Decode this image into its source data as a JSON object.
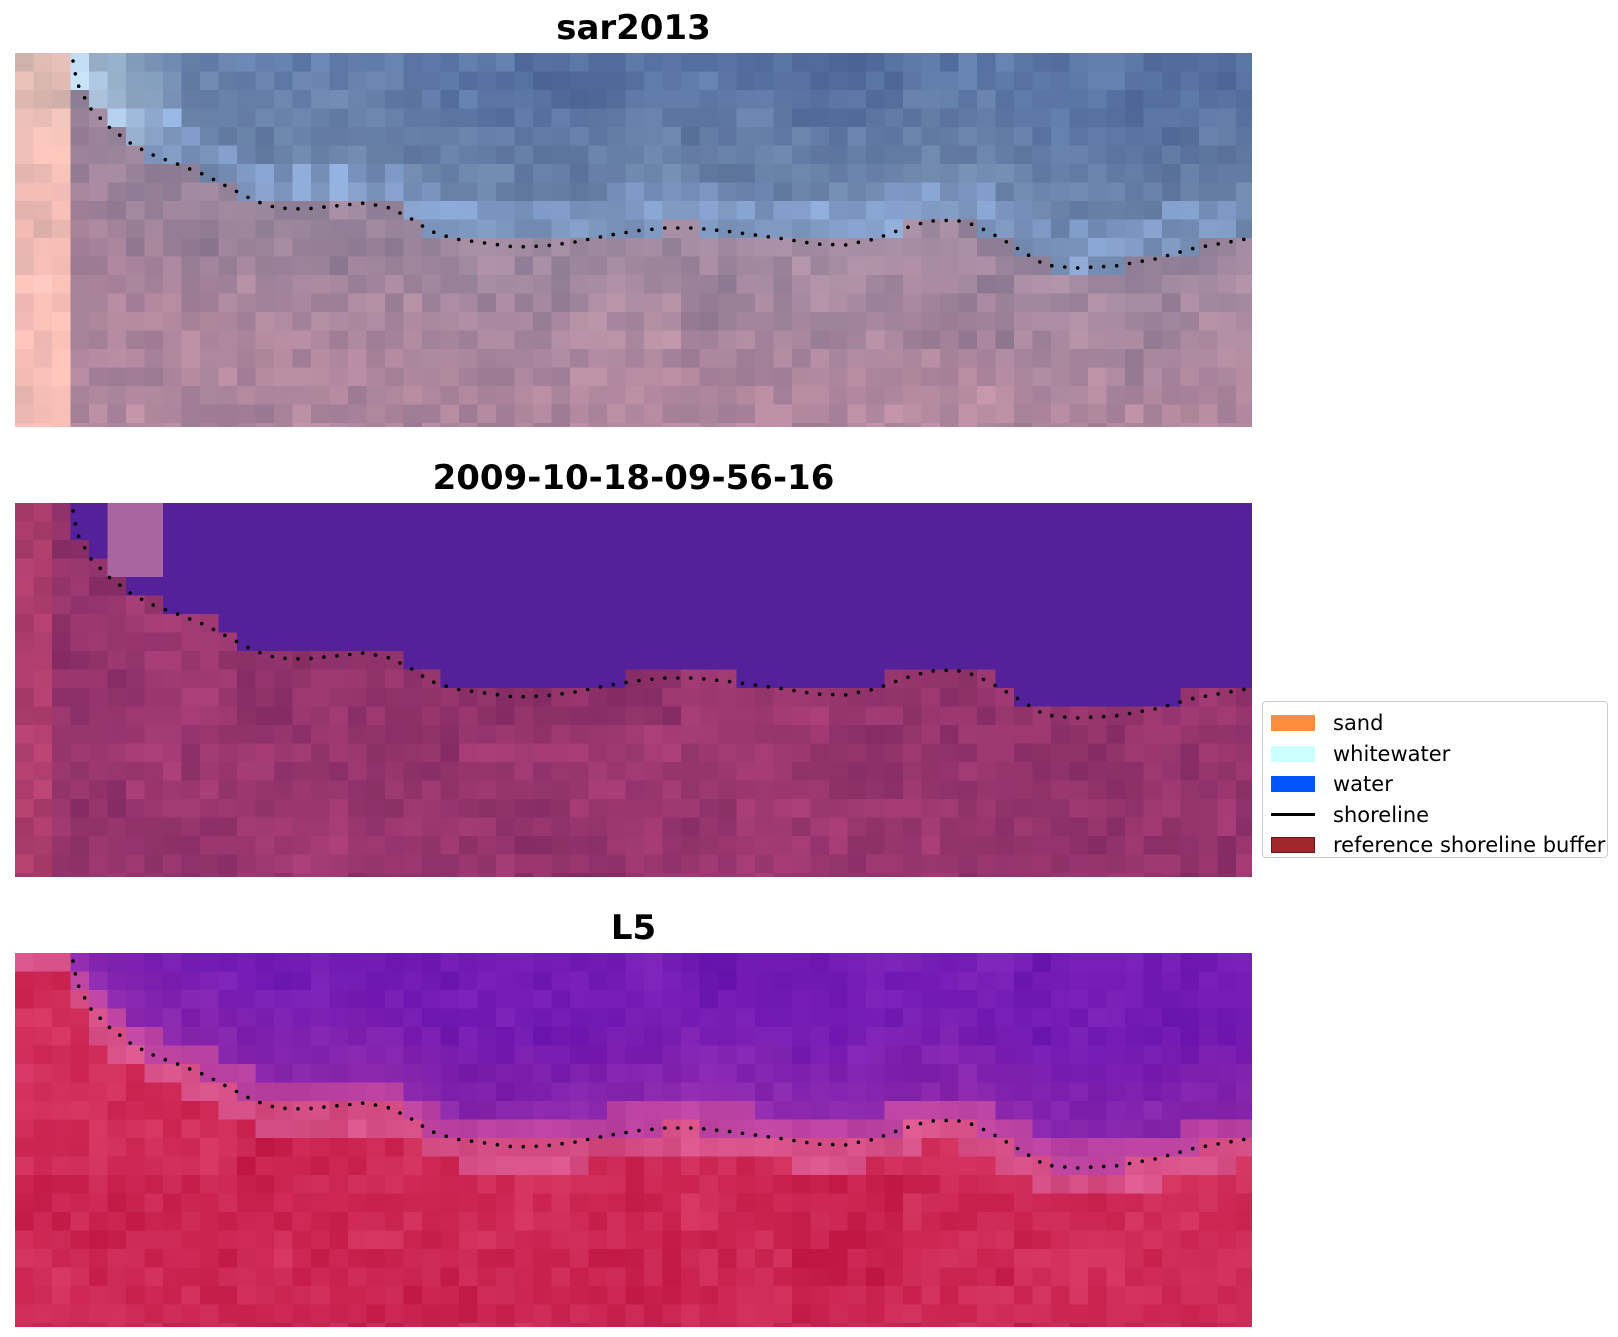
{
  "panels": [
    {
      "title": "sar2013",
      "style": "rgb"
    },
    {
      "title": "2009-10-18-09-56-16",
      "style": "classified"
    },
    {
      "title": "L5",
      "style": "index"
    }
  ],
  "legend": {
    "items": [
      {
        "label": "sand",
        "kind": "patch",
        "color": "#ff8c3a"
      },
      {
        "label": "whitewater",
        "kind": "patch",
        "color": "#ccffff"
      },
      {
        "label": "water",
        "kind": "patch",
        "color": "#0055ff"
      },
      {
        "label": "shoreline",
        "kind": "line",
        "color": "#000000"
      },
      {
        "label": "reference shoreline buffer",
        "kind": "patch",
        "color": "#a0282d"
      }
    ]
  },
  "colors": {
    "rgb_water": "#4a6590",
    "rgb_land": "#a898a8",
    "classified_water": "#54219b",
    "classified_land": "#8a3a72",
    "index_water": "#6c14a0",
    "index_land": "#c21d4e"
  }
}
